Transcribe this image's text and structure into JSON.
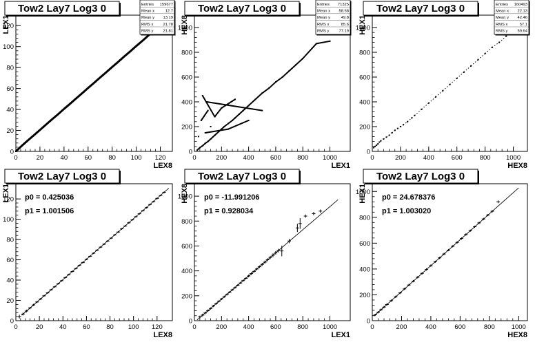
{
  "chart_data": [
    {
      "type": "scatter",
      "title": "Tow2 Lay7 Log3 0",
      "xlabel": "LEX8",
      "ylabel": "LEX1",
      "xlim": [
        0,
        130
      ],
      "ylim": [
        0,
        130
      ],
      "xticks": [
        0,
        20,
        40,
        60,
        80,
        100,
        120
      ],
      "yticks": [
        0,
        20,
        40,
        60,
        80,
        100,
        120
      ],
      "stats": [
        {
          "label": "Entries",
          "value": "159677"
        },
        {
          "label": "Mean x",
          "value": "12.7"
        },
        {
          "label": "Mean y",
          "value": "13.19"
        },
        {
          "label": "RMS x",
          "value": "21.78"
        },
        {
          "label": "RMS y",
          "value": "21.81"
        }
      ],
      "points": [
        [
          0,
          0
        ],
        [
          5,
          5.4
        ],
        [
          10,
          10.5
        ],
        [
          15,
          15.4
        ],
        [
          20,
          20.4
        ],
        [
          25,
          25.5
        ],
        [
          30,
          30.5
        ],
        [
          35,
          35.4
        ],
        [
          40,
          40.5
        ],
        [
          45,
          45.4
        ],
        [
          50,
          50.5
        ],
        [
          55,
          55.4
        ],
        [
          60,
          60.5
        ],
        [
          65,
          65.4
        ],
        [
          70,
          70.5
        ],
        [
          75,
          75.4
        ],
        [
          80,
          80.5
        ],
        [
          85,
          85.4
        ],
        [
          90,
          90.5
        ],
        [
          95,
          95.4
        ],
        [
          100,
          100.5
        ],
        [
          105,
          105.4
        ],
        [
          110,
          110.5
        ],
        [
          115,
          115.4
        ],
        [
          120,
          120.5
        ],
        [
          125,
          125.4
        ]
      ]
    },
    {
      "type": "scatter",
      "title": "Tow2 Lay7 Log3 0",
      "xlabel": "LEX1",
      "ylabel": "HEX8",
      "xlim": [
        0,
        1150
      ],
      "ylim": [
        0,
        1100
      ],
      "xticks": [
        0,
        200,
        400,
        600,
        800,
        1000
      ],
      "yticks": [
        0,
        200,
        400,
        600,
        800,
        1000
      ],
      "stats": [
        {
          "label": "Entries",
          "value": "71325"
        },
        {
          "label": "Mean x",
          "value": "58.58"
        },
        {
          "label": "Mean y",
          "value": "49.8"
        },
        {
          "label": "RMS x",
          "value": "85.6"
        },
        {
          "label": "RMS y",
          "value": "77.19"
        }
      ],
      "points": [
        [
          20,
          10
        ],
        [
          40,
          30
        ],
        [
          60,
          45
        ],
        [
          80,
          65
        ],
        [
          100,
          80
        ],
        [
          120,
          100
        ],
        [
          150,
          130
        ],
        [
          180,
          160
        ],
        [
          200,
          180
        ],
        [
          220,
          200
        ],
        [
          250,
          225
        ],
        [
          280,
          250
        ],
        [
          300,
          270
        ],
        [
          330,
          300
        ],
        [
          360,
          330
        ],
        [
          400,
          370
        ],
        [
          450,
          420
        ],
        [
          500,
          470
        ],
        [
          550,
          510
        ],
        [
          600,
          560
        ],
        [
          650,
          600
        ],
        [
          700,
          650
        ],
        [
          750,
          700
        ],
        [
          800,
          750
        ],
        [
          900,
          870
        ],
        [
          1000,
          890
        ],
        [
          50,
          250
        ],
        [
          100,
          330
        ],
        [
          60,
          450
        ],
        [
          150,
          280
        ],
        [
          200,
          350
        ],
        [
          300,
          420
        ],
        [
          120,
          200
        ],
        [
          80,
          150
        ],
        [
          250,
          180
        ],
        [
          400,
          250
        ],
        [
          30,
          120
        ],
        [
          90,
          400
        ],
        [
          500,
          330
        ]
      ]
    },
    {
      "type": "scatter",
      "title": "Tow2 Lay7 Log3 0",
      "xlabel": "HEX8",
      "ylabel": "HEX1",
      "xlim": [
        0,
        1100
      ],
      "ylim": [
        0,
        1100
      ],
      "xticks": [
        0,
        200,
        400,
        600,
        800,
        1000
      ],
      "yticks": [
        0,
        200,
        400,
        600,
        800,
        1000
      ],
      "stats": [
        {
          "label": "Entries",
          "value": "160493"
        },
        {
          "label": "Mean x",
          "value": "22.13"
        },
        {
          "label": "Mean y",
          "value": "42.46"
        },
        {
          "label": "RMS x",
          "value": "57.1"
        },
        {
          "label": "RMS y",
          "value": "59.64"
        }
      ],
      "points": [
        [
          10,
          30
        ],
        [
          20,
          40
        ],
        [
          30,
          50
        ],
        [
          40,
          60
        ],
        [
          50,
          75
        ],
        [
          60,
          85
        ],
        [
          80,
          100
        ],
        [
          100,
          115
        ],
        [
          120,
          130
        ],
        [
          140,
          150
        ],
        [
          160,
          170
        ],
        [
          180,
          185
        ],
        [
          200,
          200
        ],
        [
          220,
          215
        ],
        [
          250,
          240
        ],
        [
          280,
          270
        ],
        [
          300,
          290
        ],
        [
          350,
          340
        ],
        [
          400,
          390
        ],
        [
          450,
          440
        ],
        [
          500,
          490
        ],
        [
          550,
          540
        ],
        [
          600,
          590
        ],
        [
          650,
          640
        ],
        [
          700,
          690
        ],
        [
          750,
          740
        ],
        [
          800,
          790
        ],
        [
          850,
          840
        ],
        [
          900,
          880
        ],
        [
          950,
          930
        ]
      ]
    },
    {
      "type": "line",
      "title": "Tow2 Lay7 Log3 0",
      "xlabel": "LEX8",
      "ylabel": "LEX1",
      "xlim": [
        0,
        133
      ],
      "ylim": [
        0,
        135
      ],
      "xticks": [
        0,
        20,
        40,
        60,
        80,
        100,
        120
      ],
      "yticks": [
        0,
        20,
        40,
        60,
        80,
        100,
        120
      ],
      "fit": {
        "p0": "0.425036",
        "p1": "1.001506",
        "p0_num": 0.425036,
        "p1_num": 1.001506
      },
      "fit_range": [
        5,
        130
      ],
      "labels": {
        "p0": "p0 = 0.425036",
        "p1": "p1 = 1.001506"
      },
      "errorbars": [
        [
          3,
          4,
          1.5
        ],
        [
          6,
          6.5,
          1
        ],
        [
          9,
          9.5,
          1
        ],
        [
          12,
          12.5,
          0.8
        ],
        [
          15,
          15.5,
          0.8
        ],
        [
          18,
          18.4,
          0.6
        ],
        [
          21,
          21.4,
          0.6
        ],
        [
          24,
          24.5,
          0.5
        ],
        [
          27,
          27.4,
          0.5
        ],
        [
          30,
          30.5,
          0.5
        ],
        [
          33,
          33.4,
          0.5
        ],
        [
          36,
          36.5,
          0.5
        ],
        [
          39,
          39.4,
          0.5
        ],
        [
          42,
          42.5,
          0.5
        ],
        [
          45,
          45.4,
          0.5
        ],
        [
          48,
          48.5,
          0.5
        ],
        [
          51,
          51.4,
          0.5
        ],
        [
          54,
          54.5,
          0.5
        ],
        [
          57,
          57.4,
          0.5
        ],
        [
          60,
          60.5,
          0.5
        ],
        [
          63,
          63.4,
          0.5
        ],
        [
          66,
          66.5,
          0.5
        ],
        [
          69,
          69.4,
          0.5
        ],
        [
          72,
          72.5,
          0.5
        ],
        [
          75,
          75.4,
          0.5
        ],
        [
          78,
          78.5,
          0.5
        ],
        [
          81,
          81.4,
          0.5
        ],
        [
          84,
          84.5,
          0.5
        ],
        [
          87,
          87.4,
          0.5
        ],
        [
          90,
          90.5,
          0.5
        ],
        [
          93,
          93.4,
          0.5
        ],
        [
          96,
          96.5,
          0.5
        ],
        [
          99,
          99.4,
          0.5
        ],
        [
          102,
          102.5,
          0.5
        ],
        [
          105,
          105.4,
          0.5
        ],
        [
          108,
          108.5,
          0.5
        ],
        [
          111,
          111.4,
          0.5
        ],
        [
          114,
          114.5,
          0.5
        ],
        [
          117,
          117.4,
          0.5
        ],
        [
          120,
          120.5,
          0.5
        ],
        [
          123,
          123.4,
          0.5
        ],
        [
          126,
          126.5,
          0.5
        ]
      ]
    },
    {
      "type": "line",
      "title": "Tow2 Lay7 Log3 0",
      "xlabel": "LEX1",
      "ylabel": "HEX8",
      "xlim": [
        0,
        1150
      ],
      "ylim": [
        0,
        1100
      ],
      "xticks": [
        0,
        200,
        400,
        600,
        800,
        1000
      ],
      "yticks": [
        0,
        200,
        400,
        600,
        800,
        1000
      ],
      "fit": {
        "p0": "-11.991206",
        "p1": "0.928034",
        "p0_num": -11.991206,
        "p1_num": 0.928034
      },
      "fit_range": [
        20,
        1060
      ],
      "labels": {
        "p0": "p0 = -11.991206",
        "p1": "p1 = 0.928034"
      },
      "errorbars": [
        [
          40,
          30,
          8
        ],
        [
          60,
          45,
          8
        ],
        [
          80,
          62,
          8
        ],
        [
          100,
          80,
          8
        ],
        [
          120,
          98,
          6
        ],
        [
          140,
          118,
          6
        ],
        [
          160,
          137,
          6
        ],
        [
          180,
          155,
          6
        ],
        [
          200,
          174,
          6
        ],
        [
          220,
          192,
          6
        ],
        [
          240,
          211,
          6
        ],
        [
          260,
          229,
          6
        ],
        [
          280,
          248,
          6
        ],
        [
          300,
          266,
          6
        ],
        [
          320,
          285,
          6
        ],
        [
          340,
          303,
          6
        ],
        [
          360,
          322,
          6
        ],
        [
          380,
          340,
          6
        ],
        [
          400,
          359,
          8
        ],
        [
          420,
          378,
          8
        ],
        [
          440,
          396,
          8
        ],
        [
          460,
          415,
          8
        ],
        [
          480,
          433,
          8
        ],
        [
          500,
          452,
          10
        ],
        [
          520,
          470,
          10
        ],
        [
          540,
          489,
          10
        ],
        [
          560,
          508,
          10
        ],
        [
          580,
          526,
          12
        ],
        [
          600,
          545,
          12
        ],
        [
          620,
          563,
          12
        ],
        [
          645,
          560,
          40
        ],
        [
          700,
          640,
          15
        ],
        [
          760,
          745,
          30
        ],
        [
          780,
          780,
          40
        ],
        [
          820,
          840,
          10
        ],
        [
          880,
          860,
          10
        ],
        [
          930,
          880,
          10
        ]
      ]
    },
    {
      "type": "line",
      "title": "Tow2 Lay7 Log3 0",
      "xlabel": "HEX8",
      "ylabel": "HEX1",
      "xlim": [
        0,
        1060
      ],
      "ylim": [
        0,
        1060
      ],
      "xticks": [
        0,
        200,
        400,
        600,
        800,
        1000
      ],
      "yticks": [
        0,
        200,
        400,
        600,
        800,
        1000
      ],
      "fit": {
        "p0": "24.678376",
        "p1": "1.003020",
        "p0_num": 24.678376,
        "p1_num": 1.00302
      },
      "fit_range": [
        10,
        1000
      ],
      "labels": {
        "p0": "p0 = 24.678376",
        "p1": "p1 = 1.003020"
      },
      "errorbars": [
        [
          20,
          45,
          6
        ],
        [
          40,
          65,
          6
        ],
        [
          60,
          85,
          6
        ],
        [
          80,
          105,
          6
        ],
        [
          100,
          125,
          6
        ],
        [
          130,
          155,
          6
        ],
        [
          160,
          185,
          6
        ],
        [
          190,
          215,
          6
        ],
        [
          220,
          246,
          6
        ],
        [
          250,
          276,
          6
        ],
        [
          280,
          306,
          6
        ],
        [
          310,
          336,
          6
        ],
        [
          340,
          366,
          6
        ],
        [
          370,
          396,
          6
        ],
        [
          400,
          426,
          6
        ],
        [
          430,
          456,
          6
        ],
        [
          460,
          486,
          6
        ],
        [
          490,
          516,
          6
        ],
        [
          520,
          546,
          6
        ],
        [
          550,
          576,
          6
        ],
        [
          580,
          606,
          6
        ],
        [
          610,
          636,
          6
        ],
        [
          640,
          667,
          6
        ],
        [
          670,
          697,
          6
        ],
        [
          700,
          727,
          6
        ],
        [
          730,
          757,
          6
        ],
        [
          760,
          787,
          6
        ],
        [
          790,
          817,
          6
        ],
        [
          820,
          847,
          6
        ],
        [
          860,
          920,
          8
        ]
      ]
    }
  ]
}
